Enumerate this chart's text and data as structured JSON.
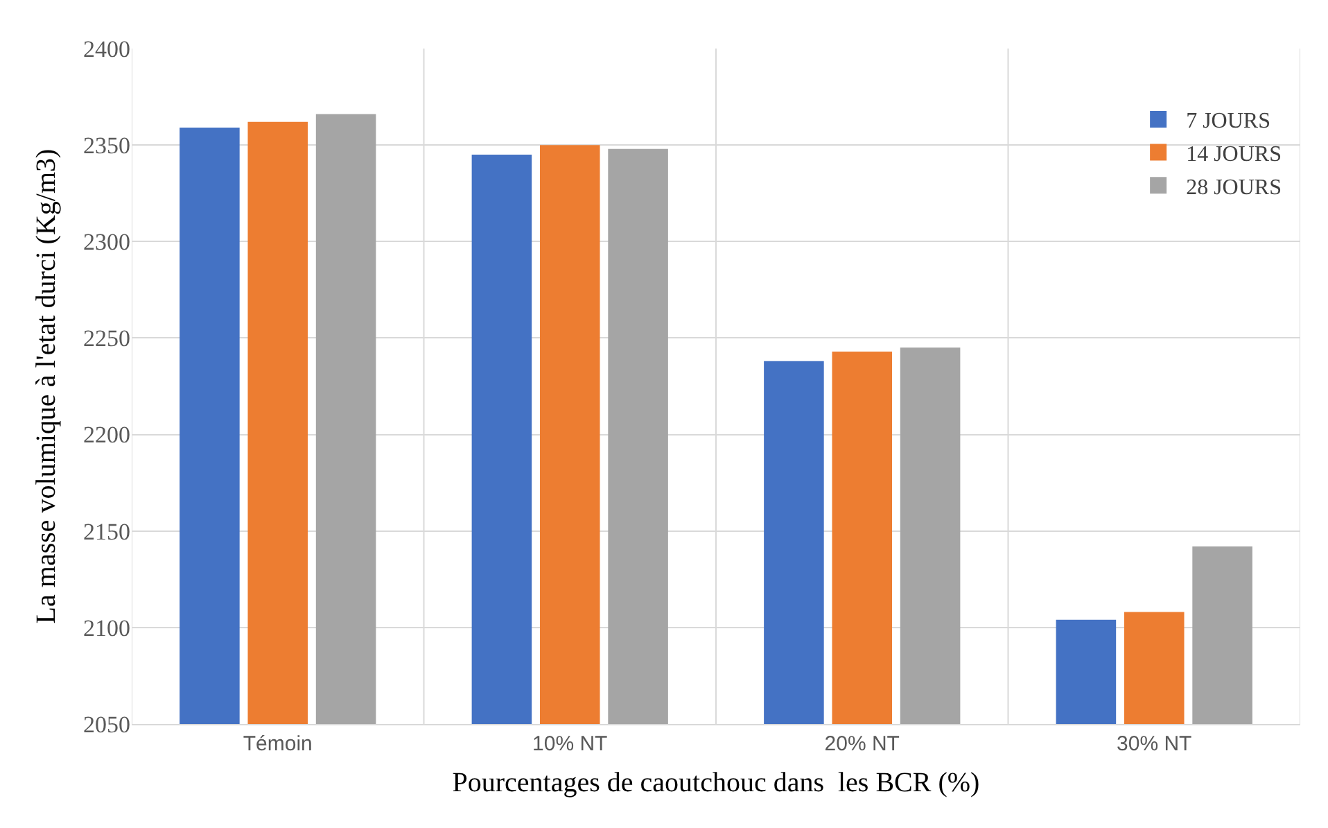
{
  "chart_data": {
    "type": "bar",
    "xlabel": "Pourcentages de caoutchouc dans  les BCR (%)",
    "ylabel": "La masse volumique à l'etat durci (Kg/m3)",
    "categories": [
      "Témoin",
      "10% NT",
      "20% NT",
      "30% NT"
    ],
    "series": [
      {
        "name": "7 JOURS",
        "color": "#4472c4",
        "values": [
          2359,
          2345,
          2238,
          2104
        ]
      },
      {
        "name": "14 JOURS",
        "color": "#ed7d31",
        "values": [
          2362,
          2350,
          2243,
          2108
        ]
      },
      {
        "name": "28 JOURS",
        "color": "#a5a5a5",
        "values": [
          2366,
          2348,
          2245,
          2142
        ]
      }
    ],
    "ylim": [
      2050,
      2400
    ],
    "yticks": [
      2050,
      2100,
      2150,
      2200,
      2250,
      2300,
      2350,
      2400
    ],
    "grid": true,
    "legend": "top right"
  }
}
